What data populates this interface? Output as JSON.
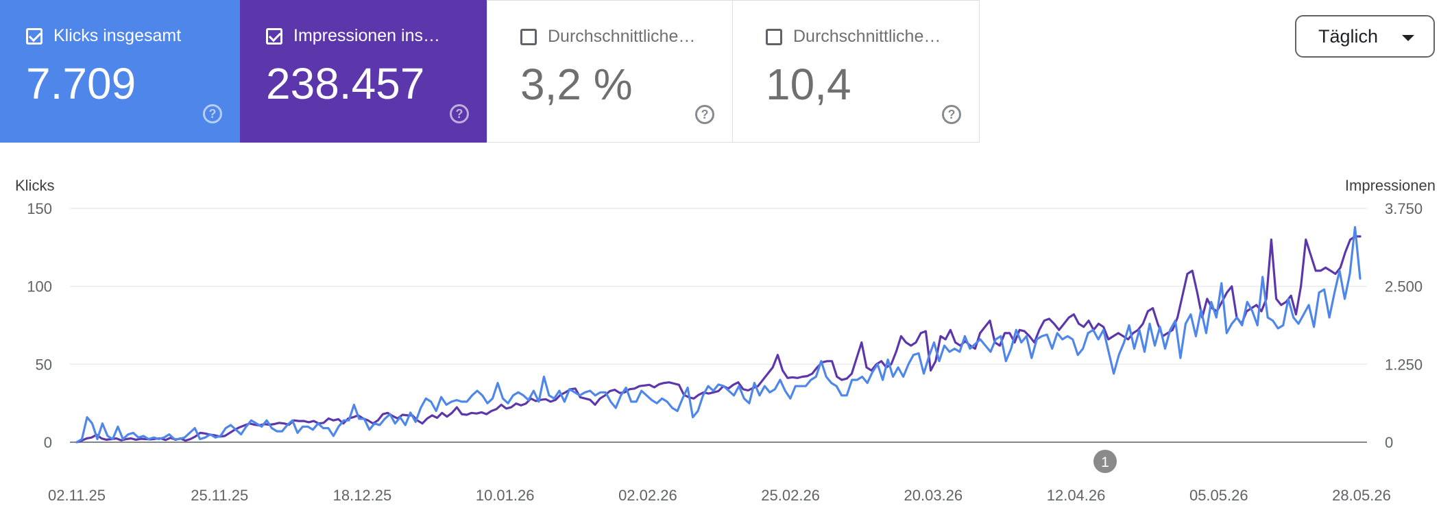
{
  "metrics": {
    "clicks": {
      "label": "Klicks insgesamt",
      "value": "7.709",
      "checked": true
    },
    "impressions": {
      "label": "Impressionen ins…",
      "value": "238.457",
      "checked": true
    },
    "ctr": {
      "label": "Durchschnittliche…",
      "value": "3,2 %",
      "checked": false
    },
    "position": {
      "label": "Durchschnittliche…",
      "value": "10,4",
      "checked": false
    }
  },
  "granularity": {
    "selected": "Täglich"
  },
  "colors": {
    "clicks": "#4e86e9",
    "impressions": "#5c37ab",
    "tile_inactive_text": "#6f6f6f",
    "grid": "#e8eaed"
  },
  "chart_data": {
    "type": "line",
    "ylabel_left": "Klicks",
    "ylabel_right": "Impressionen",
    "ylim_left": [
      0,
      150
    ],
    "ylim_right": [
      0,
      3750
    ],
    "yticks_left": [
      "150",
      "100",
      "50",
      "0"
    ],
    "yticks_right": [
      "3.750",
      "2.500",
      "1.250",
      "0"
    ],
    "xtick_labels": [
      "02.11.25",
      "25.11.25",
      "18.12.25",
      "10.01.26",
      "02.02.26",
      "25.02.26",
      "20.03.26",
      "12.04.26",
      "05.05.26",
      "28.05.26"
    ],
    "annotation": "1",
    "series": [
      {
        "name": "Klicks",
        "axis": "left",
        "color": "#4e86e9",
        "values": [
          0,
          2,
          16,
          12,
          2,
          12,
          4,
          2,
          10,
          2,
          5,
          6,
          3,
          4,
          2,
          3,
          2,
          3,
          5,
          2,
          2,
          3,
          6,
          9,
          2,
          3,
          5,
          3,
          4,
          9,
          11,
          8,
          5,
          10,
          14,
          12,
          10,
          14,
          9,
          7,
          7,
          11,
          14,
          6,
          10,
          10,
          8,
          12,
          9,
          9,
          4,
          10,
          14,
          14,
          24,
          15,
          15,
          8,
          12,
          11,
          15,
          18,
          12,
          16,
          11,
          19,
          13,
          22,
          28,
          26,
          20,
          29,
          24,
          26,
          27,
          26,
          26,
          30,
          33,
          30,
          25,
          28,
          38,
          28,
          25,
          30,
          32,
          30,
          27,
          33,
          26,
          42,
          30,
          28,
          33,
          26,
          34,
          32,
          30,
          32,
          33,
          30,
          32,
          32,
          26,
          22,
          30,
          35,
          26,
          26,
          33,
          30,
          27,
          25,
          28,
          26,
          22,
          20,
          28,
          35,
          16,
          20,
          30,
          36,
          33,
          37,
          36,
          33,
          30,
          36,
          28,
          25,
          38,
          30,
          36,
          32,
          34,
          40,
          33,
          28,
          36,
          36,
          36,
          40,
          42,
          52,
          42,
          38,
          36,
          30,
          30,
          40,
          40,
          42,
          38,
          45,
          50,
          40,
          53,
          42,
          48,
          42,
          50,
          56,
          57,
          44,
          55,
          64,
          52,
          62,
          58,
          60,
          58,
          68,
          60,
          63,
          66,
          62,
          58,
          66,
          68,
          52,
          60,
          72,
          64,
          68,
          54,
          66,
          68,
          69,
          60,
          70,
          66,
          68,
          66,
          56,
          60,
          70,
          72,
          66,
          72,
          58,
          44,
          56,
          64,
          75,
          60,
          72,
          58,
          76,
          62,
          74,
          60,
          72,
          78,
          54,
          76,
          82,
          68,
          85,
          70,
          90,
          80,
          102,
          70,
          76,
          80,
          75,
          90,
          84,
          75,
          106,
          80,
          78,
          73,
          75,
          92,
          80,
          76,
          82,
          88,
          74,
          96,
          98,
          80,
          96,
          110,
          92,
          108,
          138,
          105
        ]
      },
      {
        "name": "Impressionen",
        "axis": "right",
        "color": "#5c37ab",
        "values": [
          0,
          25,
          60,
          75,
          120,
          60,
          40,
          50,
          60,
          30,
          50,
          60,
          40,
          55,
          50,
          45,
          55,
          60,
          35,
          70,
          40,
          60,
          25,
          50,
          90,
          150,
          140,
          120,
          110,
          90,
          100,
          150,
          200,
          240,
          270,
          300,
          280,
          270,
          290,
          280,
          290,
          310,
          300,
          280,
          350,
          340,
          340,
          320,
          340,
          300,
          310,
          380,
          350,
          370,
          300,
          380,
          400,
          430,
          380,
          350,
          300,
          350,
          450,
          470,
          420,
          380,
          440,
          430,
          430,
          350,
          300,
          380,
          430,
          390,
          470,
          410,
          470,
          560,
          450,
          440,
          470,
          460,
          480,
          450,
          500,
          530,
          600,
          540,
          560,
          620,
          590,
          620,
          700,
          660,
          680,
          690,
          650,
          680,
          760,
          800,
          850,
          860,
          720,
          700,
          680,
          600,
          700,
          750,
          820,
          840,
          790,
          800,
          850,
          860,
          900,
          910,
          920,
          880,
          930,
          950,
          960,
          940,
          920,
          760,
          720,
          700,
          760,
          800,
          780,
          800,
          820,
          900,
          860,
          920,
          960,
          850,
          830,
          870,
          900,
          1000,
          1100,
          1200,
          1400,
          1150,
          1030,
          1040,
          1030,
          1050,
          1060,
          1100,
          1200,
          1280,
          1300,
          1300,
          1050,
          1000,
          1020,
          1100,
          1350,
          1600,
          1200,
          1150,
          1250,
          1300,
          1200,
          1250,
          1450,
          1700,
          1600,
          1550,
          1600,
          1750,
          1780,
          1150,
          1300,
          1700,
          1650,
          1800,
          1600,
          1550,
          1620,
          1550,
          1500,
          1750,
          1850,
          1950,
          1600,
          1550,
          1750,
          1750,
          1600,
          1800,
          1780,
          1700,
          1600,
          1800,
          1950,
          1980,
          1900,
          1800,
          1900,
          2000,
          2050,
          1900,
          1850,
          1950,
          1800,
          1900,
          1850,
          1650,
          1700,
          1750,
          1700,
          1650,
          1750,
          1800,
          1900,
          2100,
          2150,
          1900,
          1700,
          1750,
          1800,
          2000,
          2350,
          2700,
          2750,
          2400,
          2000,
          2300,
          2150,
          2100,
          2250,
          2400,
          2500,
          2000,
          1900,
          2100,
          2150,
          2200,
          2100,
          2300,
          3250,
          2300,
          2200,
          2250,
          2350,
          2050,
          2500,
          3250,
          3000,
          2750,
          2750,
          2800,
          2750,
          2700,
          2800,
          3050,
          3250,
          3300,
          3300
        ]
      }
    ]
  }
}
